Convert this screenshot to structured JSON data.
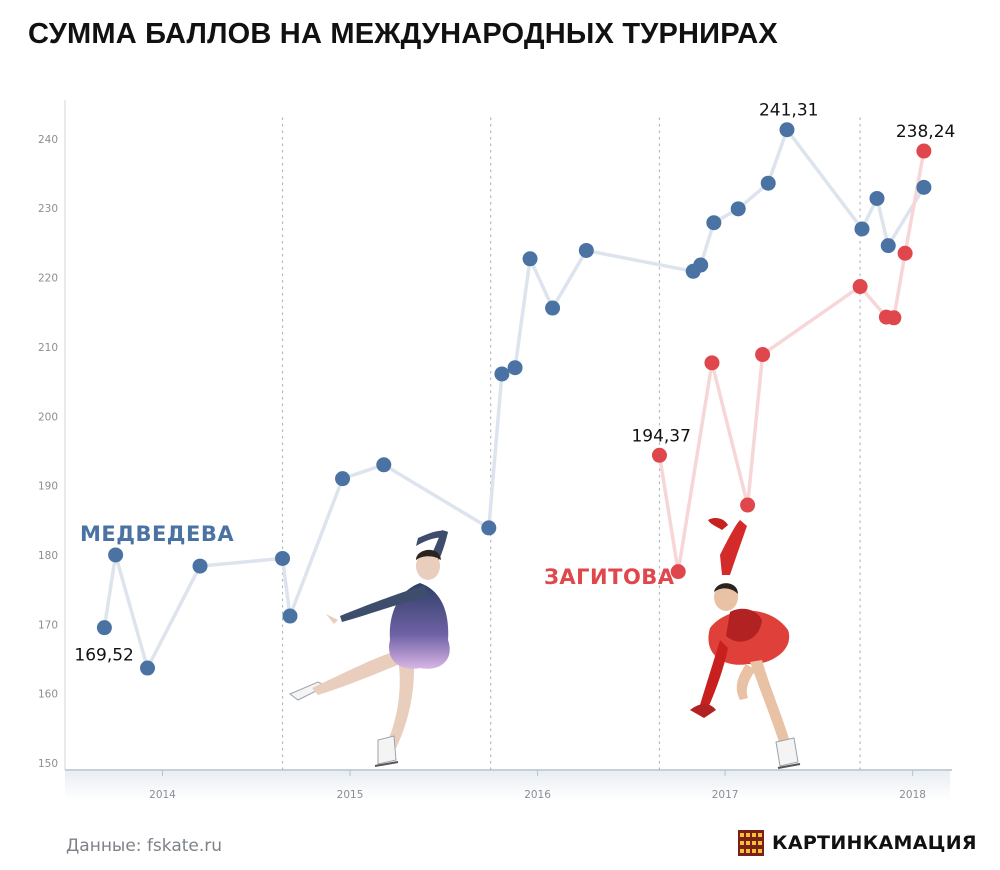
{
  "header": {
    "title": "СУММА БАЛЛОВ НА МЕЖДУНАРОДНЫХ ТУРНИРАХ"
  },
  "footer": {
    "source": "Данные: fskate.ru",
    "brand": "КАРТИНКАМАЦИЯ"
  },
  "colors": {
    "medvedeva": "#4a73a3",
    "zagitova": "#e0474c",
    "line_medvedeva": "#dde4ee",
    "line_zagitova": "#f7d6d7",
    "gridline": "#b5b9be",
    "axis": "#c5cfdb"
  },
  "chart_data": {
    "type": "scatter",
    "title": "СУММА БАЛЛОВ НА МЕЖДУНАРОДНЫХ ТУРНИРАХ",
    "xlabel": "",
    "ylabel": "",
    "x_unit": "year",
    "xlim": [
      2013.48,
      2018.21
    ],
    "ylim": [
      149,
      243
    ],
    "x_ticks": [
      2014,
      2015,
      2016,
      2017,
      2018
    ],
    "y_ticks": [
      150,
      160,
      170,
      180,
      190,
      200,
      210,
      220,
      230,
      240
    ],
    "season_dividers": [
      2014.64,
      2015.75,
      2016.65,
      2017.72
    ],
    "grid": false,
    "series": [
      {
        "name": "МЕДВЕДЕВА",
        "color": "#4a73a3",
        "points": [
          {
            "x": 2013.69,
            "y": 169.52
          },
          {
            "x": 2013.75,
            "y": 180.0
          },
          {
            "x": 2013.92,
            "y": 163.7
          },
          {
            "x": 2014.2,
            "y": 178.4
          },
          {
            "x": 2014.64,
            "y": 179.5
          },
          {
            "x": 2014.68,
            "y": 171.2
          },
          {
            "x": 2014.96,
            "y": 191.0
          },
          {
            "x": 2015.18,
            "y": 193.0
          },
          {
            "x": 2015.74,
            "y": 183.9
          },
          {
            "x": 2015.81,
            "y": 206.1
          },
          {
            "x": 2015.88,
            "y": 207.0
          },
          {
            "x": 2015.96,
            "y": 222.7
          },
          {
            "x": 2016.08,
            "y": 215.6
          },
          {
            "x": 2016.26,
            "y": 223.9
          },
          {
            "x": 2016.83,
            "y": 220.9
          },
          {
            "x": 2016.87,
            "y": 221.8
          },
          {
            "x": 2016.94,
            "y": 227.9
          },
          {
            "x": 2017.07,
            "y": 229.9
          },
          {
            "x": 2017.23,
            "y": 233.6
          },
          {
            "x": 2017.33,
            "y": 241.31
          },
          {
            "x": 2017.73,
            "y": 227.0
          },
          {
            "x": 2017.81,
            "y": 231.4
          },
          {
            "x": 2017.87,
            "y": 224.6
          },
          {
            "x": 2018.06,
            "y": 233.0
          }
        ]
      },
      {
        "name": "ЗАГИТОВА",
        "color": "#e0474c",
        "points": [
          {
            "x": 2016.65,
            "y": 194.37
          },
          {
            "x": 2016.75,
            "y": 177.6
          },
          {
            "x": 2016.93,
            "y": 207.7
          },
          {
            "x": 2017.12,
            "y": 187.2
          },
          {
            "x": 2017.2,
            "y": 208.9
          },
          {
            "x": 2017.72,
            "y": 218.7
          },
          {
            "x": 2017.86,
            "y": 214.3
          },
          {
            "x": 2017.9,
            "y": 214.2
          },
          {
            "x": 2017.96,
            "y": 223.5
          },
          {
            "x": 2018.06,
            "y": 238.24
          }
        ]
      }
    ],
    "annotations": [
      {
        "text": "169,52",
        "series": 0,
        "point": 0
      },
      {
        "text": "241,31",
        "series": 0,
        "point": 19
      },
      {
        "text": "194,37",
        "series": 1,
        "point": 0
      },
      {
        "text": "238,24",
        "series": 1,
        "point": 9
      }
    ]
  }
}
